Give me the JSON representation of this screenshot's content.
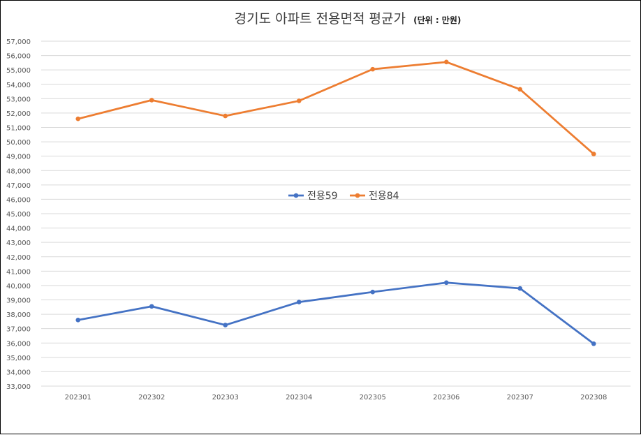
{
  "chart_data": {
    "type": "line",
    "title": "경기도 아파트 전용면적 평균가",
    "title_unit": "(단위 : 만원)",
    "xlabel": "",
    "ylabel": "",
    "categories": [
      "202301",
      "202302",
      "202303",
      "202304",
      "202305",
      "202306",
      "202307",
      "202308"
    ],
    "ylim": [
      33000,
      57000
    ],
    "ytick_step": 1000,
    "yticks": [
      "33,000",
      "34,000",
      "35,000",
      "36,000",
      "37,000",
      "38,000",
      "39,000",
      "40,000",
      "41,000",
      "42,000",
      "43,000",
      "44,000",
      "45,000",
      "46,000",
      "47,000",
      "48,000",
      "49,000",
      "50,000",
      "51,000",
      "52,000",
      "53,000",
      "54,000",
      "55,000",
      "56,000",
      "57,000"
    ],
    "grid": true,
    "legend_position": "center",
    "series": [
      {
        "name": "전용59",
        "color": "#4472C4",
        "values": [
          37600,
          38550,
          37250,
          38850,
          39550,
          40200,
          39800,
          35950
        ]
      },
      {
        "name": "전용84",
        "color": "#ED7D31",
        "values": [
          51600,
          52900,
          51800,
          52850,
          55050,
          55550,
          53650,
          49150
        ]
      }
    ]
  }
}
